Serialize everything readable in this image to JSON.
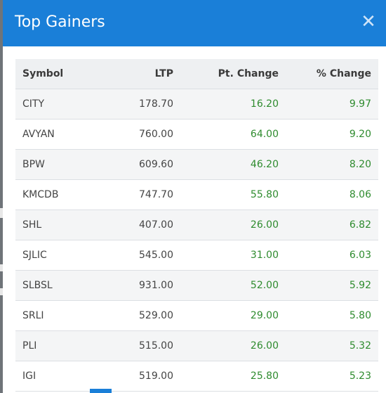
{
  "modal": {
    "title": "Top Gainers",
    "close_icon": "close-icon"
  },
  "table": {
    "headers": {
      "symbol": "Symbol",
      "ltp": "LTP",
      "pt_change": "Pt. Change",
      "pct_change": "% Change"
    },
    "rows": [
      {
        "symbol": "CITY",
        "ltp": "178.70",
        "pt_change": "16.20",
        "pct_change": "9.97"
      },
      {
        "symbol": "AVYAN",
        "ltp": "760.00",
        "pt_change": "64.00",
        "pct_change": "9.20"
      },
      {
        "symbol": "BPW",
        "ltp": "609.60",
        "pt_change": "46.20",
        "pct_change": "8.20"
      },
      {
        "symbol": "KMCDB",
        "ltp": "747.70",
        "pt_change": "55.80",
        "pct_change": "8.06"
      },
      {
        "symbol": "SHL",
        "ltp": "407.00",
        "pt_change": "26.00",
        "pct_change": "6.82"
      },
      {
        "symbol": "SJLIC",
        "ltp": "545.00",
        "pt_change": "31.00",
        "pct_change": "6.03"
      },
      {
        "symbol": "SLBSL",
        "ltp": "931.00",
        "pt_change": "52.00",
        "pct_change": "5.92"
      },
      {
        "symbol": "SRLI",
        "ltp": "529.00",
        "pt_change": "29.00",
        "pct_change": "5.80"
      },
      {
        "symbol": "PLI",
        "ltp": "515.00",
        "pt_change": "26.00",
        "pct_change": "5.32"
      },
      {
        "symbol": "IGI",
        "ltp": "519.00",
        "pt_change": "25.80",
        "pct_change": "5.23"
      }
    ]
  },
  "colors": {
    "header_bg": "#1a7fd8",
    "positive": "#2e8b2e"
  }
}
